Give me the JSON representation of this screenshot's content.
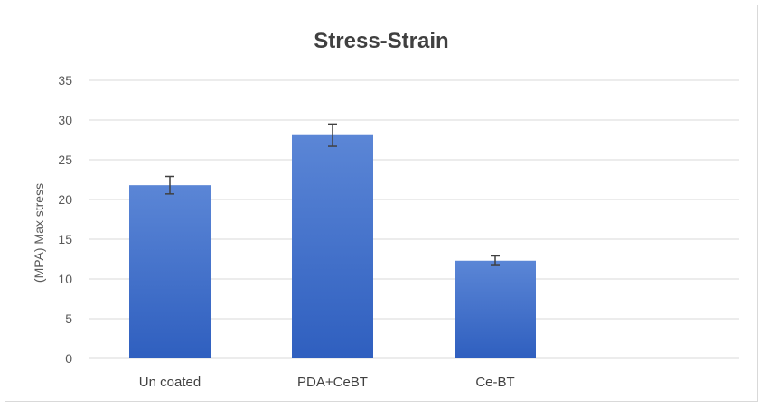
{
  "chart_data": {
    "type": "bar",
    "title": "Stress-Strain",
    "xlabel": "",
    "ylabel": "(MPA) Max stress",
    "categories": [
      "Un coated",
      "PDA+CeBT",
      "Ce-BT"
    ],
    "values": [
      21.8,
      28.1,
      12.3
    ],
    "errors": [
      1.1,
      1.4,
      0.6
    ],
    "ylim": [
      0,
      35
    ],
    "yticks": [
      0,
      5,
      10,
      15,
      20,
      25,
      30,
      35
    ],
    "grid": true,
    "legend": "none",
    "colors": {
      "bar_top": "#5b86d6",
      "bar_bottom": "#2f5fbf",
      "grid": "#d9d9d9",
      "error_bar": "#404040"
    }
  }
}
